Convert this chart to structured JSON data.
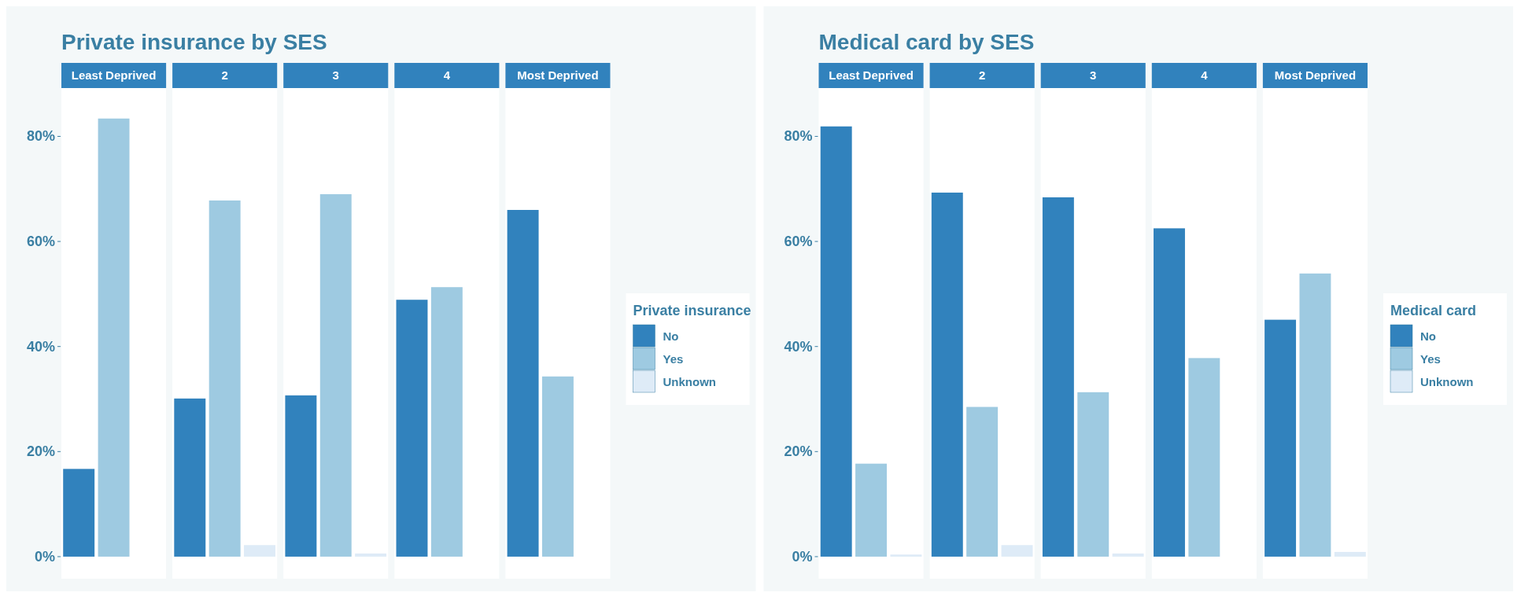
{
  "chart_data": [
    {
      "type": "bar",
      "title": "Private insurance by SES",
      "legend_title": "Private insurance",
      "categories": [
        "Least Deprived",
        "2",
        "3",
        "4",
        "Most Deprived"
      ],
      "legend": "right",
      "ylim": [
        -4.2,
        89.2
      ],
      "yticks": [
        {
          "value": 0,
          "label": "0%"
        },
        {
          "value": 20,
          "label": "20%"
        },
        {
          "value": 40,
          "label": "40%"
        },
        {
          "value": 60,
          "label": "60%"
        },
        {
          "value": 80,
          "label": "80%"
        }
      ],
      "series": [
        {
          "name": "No",
          "color": "#3182bd",
          "values": [
            16.7,
            30.1,
            30.7,
            48.9,
            66.0
          ]
        },
        {
          "name": "Yes",
          "color": "#9ecae1",
          "values": [
            83.4,
            67.8,
            69.0,
            51.3,
            34.3
          ]
        },
        {
          "name": "Unknown",
          "color": "#deebf7",
          "values": [
            null,
            2.2,
            0.6,
            null,
            null
          ]
        }
      ]
    },
    {
      "type": "bar",
      "title": "Medical card by SES",
      "legend_title": "Medical card",
      "categories": [
        "Least Deprived",
        "2",
        "3",
        "4",
        "Most Deprived"
      ],
      "legend": "right",
      "ylim": [
        -4.2,
        89.2
      ],
      "yticks": [
        {
          "value": 0,
          "label": "0%"
        },
        {
          "value": 20,
          "label": "20%"
        },
        {
          "value": 40,
          "label": "40%"
        },
        {
          "value": 60,
          "label": "60%"
        },
        {
          "value": 80,
          "label": "80%"
        }
      ],
      "series": [
        {
          "name": "No",
          "color": "#3182bd",
          "values": [
            81.9,
            69.3,
            68.4,
            62.5,
            45.1
          ]
        },
        {
          "name": "Yes",
          "color": "#9ecae1",
          "values": [
            17.7,
            28.5,
            31.3,
            37.8,
            53.9
          ]
        },
        {
          "name": "Unknown",
          "color": "#deebf7",
          "values": [
            0.4,
            2.2,
            0.6,
            null,
            0.9
          ]
        }
      ]
    }
  ]
}
